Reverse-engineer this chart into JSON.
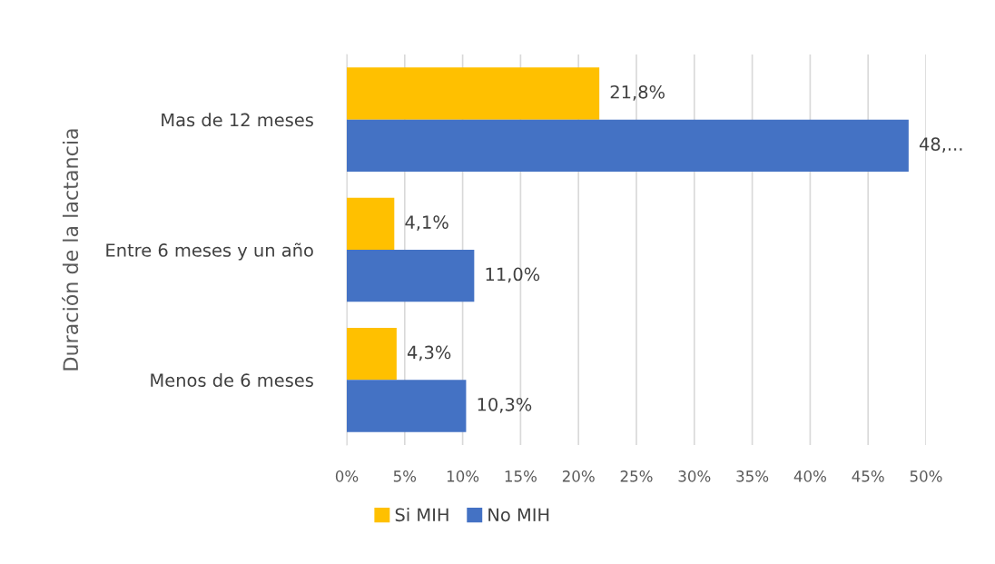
{
  "chart_data": {
    "type": "bar",
    "orientation": "horizontal",
    "ylabel": "Duración de la lactancia",
    "categories": [
      "Mas de 12 meses",
      "Entre 6 meses y un año",
      "Menos de 6 meses"
    ],
    "series": [
      {
        "name": "Si MIH",
        "color": "#ffc000",
        "values": [
          21.8,
          4.1,
          4.3
        ],
        "value_labels": [
          "21,8%",
          "4,1%",
          "4,3%"
        ]
      },
      {
        "name": "No MIH",
        "color": "#4472c4",
        "values": [
          48.5,
          11.0,
          10.3
        ],
        "value_labels": [
          "48,...",
          "11,0%",
          "10,3%"
        ]
      }
    ],
    "xlim": [
      0,
      50
    ],
    "xticks": [
      {
        "value": 0,
        "label": "0%"
      },
      {
        "value": 5,
        "label": "5%"
      },
      {
        "value": 10,
        "label": "10%"
      },
      {
        "value": 15,
        "label": "15%"
      },
      {
        "value": 20,
        "label": "20%"
      },
      {
        "value": 25,
        "label": "25%"
      },
      {
        "value": 30,
        "label": "30%"
      },
      {
        "value": 35,
        "label": "35%"
      },
      {
        "value": 40,
        "label": "40%"
      },
      {
        "value": 45,
        "label": "45%"
      },
      {
        "value": 50,
        "label": "50%"
      }
    ],
    "grid": "x",
    "legend": "bottom"
  }
}
